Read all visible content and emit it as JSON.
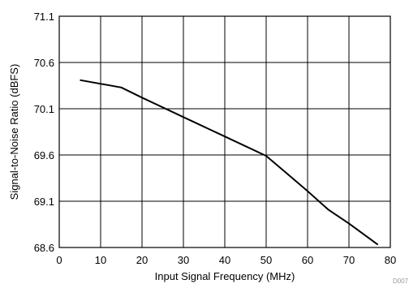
{
  "chart_data": {
    "type": "line",
    "xlabel": "Input Signal Frequency (MHz)",
    "ylabel": "Signal-to-Noise Ratio (dBFS)",
    "xlim": [
      0,
      80
    ],
    "ylim": [
      68.6,
      71.1
    ],
    "x_ticks": [
      0,
      10,
      20,
      30,
      40,
      50,
      60,
      70,
      80
    ],
    "x_tick_labels": [
      "0",
      "10",
      "20",
      "30",
      "40",
      "50",
      "60",
      "70",
      "80"
    ],
    "y_ticks": [
      68.6,
      69.1,
      69.6,
      70.1,
      70.6,
      71.1
    ],
    "y_tick_labels": [
      "68.6",
      "69.1",
      "69.6",
      "70.1",
      "70.6",
      "71.1"
    ],
    "grid": true,
    "series": [
      {
        "color": "#000000",
        "x": [
          5,
          15,
          20,
          30,
          40,
          50,
          55,
          60,
          65,
          70,
          77
        ],
        "y": [
          70.41,
          70.33,
          70.22,
          70.01,
          69.8,
          69.59,
          69.4,
          69.21,
          69.01,
          68.86,
          68.63
        ]
      }
    ],
    "figure_code": "D007"
  }
}
